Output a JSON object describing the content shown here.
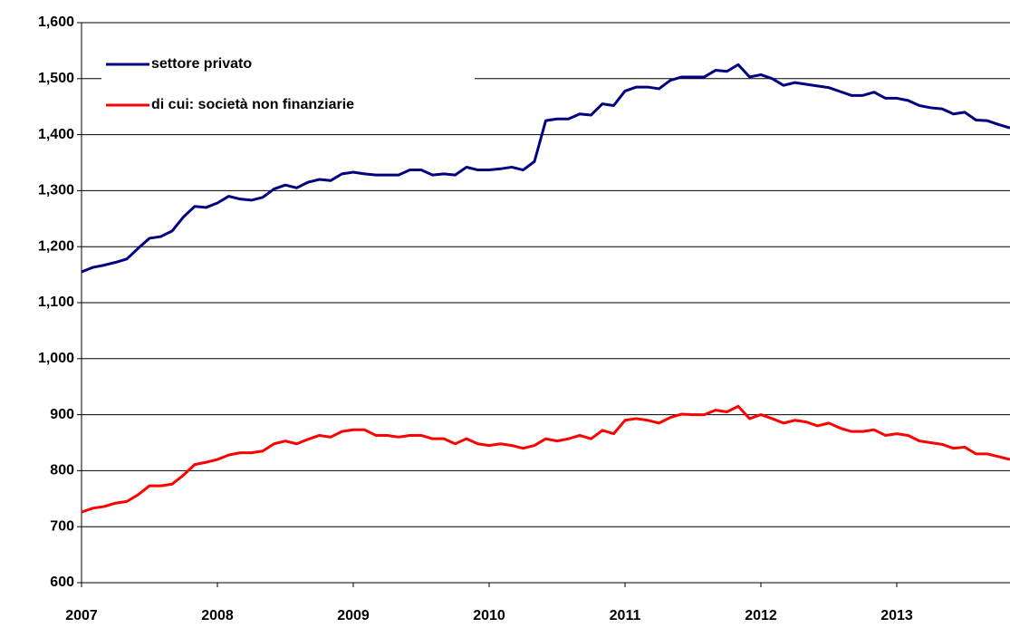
{
  "chart_data": {
    "type": "line",
    "categories": [
      "2007",
      null,
      null,
      null,
      null,
      null,
      null,
      null,
      null,
      null,
      null,
      null,
      "2008",
      null,
      null,
      null,
      null,
      null,
      null,
      null,
      null,
      null,
      null,
      null,
      "2009",
      null,
      null,
      null,
      null,
      null,
      null,
      null,
      null,
      null,
      null,
      null,
      "2010",
      null,
      null,
      null,
      null,
      null,
      null,
      null,
      null,
      null,
      null,
      null,
      "2011",
      null,
      null,
      null,
      null,
      null,
      null,
      null,
      null,
      null,
      null,
      null,
      "2012",
      null,
      null,
      null,
      null,
      null,
      null,
      null,
      null,
      null,
      null,
      null,
      "2013",
      null,
      null,
      null,
      null,
      null,
      null,
      null,
      null,
      null,
      null
    ],
    "series": [
      {
        "name": "settore privato",
        "color": "#000080",
        "values": [
          1155,
          1163,
          1167,
          1172,
          1178,
          1197,
          1215,
          1218,
          1228,
          1253,
          1272,
          1270,
          1278,
          1290,
          1285,
          1283,
          1288,
          1303,
          1310,
          1305,
          1315,
          1320,
          1318,
          1330,
          1333,
          1330,
          1328,
          1328,
          1328,
          1337,
          1337,
          1328,
          1330,
          1328,
          1342,
          1337,
          1337,
          1339,
          1342,
          1337,
          1352,
          1425,
          1428,
          1428,
          1437,
          1435,
          1455,
          1452,
          1478,
          1485,
          1485,
          1482,
          1497,
          1503,
          1503,
          1503,
          1515,
          1513,
          1525,
          1503,
          1507,
          1500,
          1488,
          1493,
          1490,
          1487,
          1484,
          1477,
          1470,
          1470,
          1476,
          1465,
          1465,
          1461,
          1452,
          1448,
          1446,
          1437,
          1440,
          1426,
          1425,
          1418,
          1412
        ]
      },
      {
        "name": "di cui: società non finanziarie",
        "color": "#ff0000",
        "values": [
          726,
          733,
          736,
          742,
          745,
          757,
          773,
          773,
          776,
          792,
          811,
          815,
          820,
          828,
          832,
          832,
          835,
          848,
          853,
          848,
          856,
          863,
          860,
          870,
          873,
          873,
          863,
          863,
          860,
          863,
          863,
          857,
          857,
          848,
          857,
          848,
          845,
          848,
          845,
          840,
          845,
          857,
          853,
          857,
          863,
          857,
          872,
          866,
          890,
          893,
          890,
          885,
          895,
          901,
          900,
          900,
          908,
          905,
          915,
          893,
          900,
          893,
          885,
          890,
          887,
          880,
          885,
          876,
          870,
          870,
          873,
          863,
          866,
          863,
          853,
          850,
          847,
          840,
          842,
          830,
          830,
          825,
          820
        ]
      }
    ],
    "ylim": [
      600,
      1600
    ],
    "yticks": [
      {
        "value": 600,
        "label": "600"
      },
      {
        "value": 700,
        "label": "700"
      },
      {
        "value": 800,
        "label": "800"
      },
      {
        "value": 900,
        "label": "900"
      },
      {
        "value": 1000,
        "label": "1,000"
      },
      {
        "value": 1100,
        "label": "1,100"
      },
      {
        "value": 1200,
        "label": "1,200"
      },
      {
        "value": 1300,
        "label": "1,300"
      },
      {
        "value": 1400,
        "label": "1,400"
      },
      {
        "value": 1500,
        "label": "1,500"
      },
      {
        "value": 1600,
        "label": "1,600"
      }
    ],
    "grid": true,
    "legend": "upper left"
  }
}
